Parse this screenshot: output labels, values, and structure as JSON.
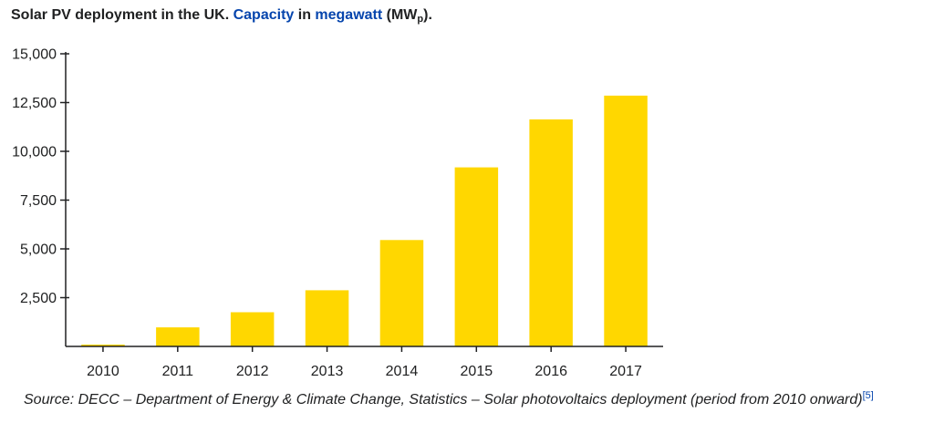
{
  "caption": {
    "part1": "Solar PV deployment in the UK. ",
    "link1": "Capacity",
    "part2": " in ",
    "link2": "megawatt",
    "part3": " (MW",
    "subscript": "p",
    "part4": ")."
  },
  "source": {
    "text": "Source: DECC – Department of Energy & Climate Change, Statistics – Solar photovoltaics deployment (period from 2010 onward)",
    "ref": "[5]"
  },
  "colors": {
    "bar": "#ffd700",
    "axis": "#202122",
    "link": "#0645ad"
  },
  "chart_data": {
    "type": "bar",
    "title": "",
    "xlabel": "",
    "ylabel": "",
    "categories": [
      "2010",
      "2011",
      "2012",
      "2013",
      "2014",
      "2015",
      "2016",
      "2017"
    ],
    "values": [
      95,
      977,
      1753,
      2880,
      5452,
      9176,
      11637,
      12857
    ],
    "ylim": [
      0,
      15000
    ],
    "yticks": [
      2500,
      5000,
      7500,
      10000,
      12500,
      15000
    ],
    "ytick_labels": [
      "2,500",
      "5,000",
      "7,500",
      "10,000",
      "12,500",
      "15,000"
    ],
    "grid": false,
    "legend": "none"
  }
}
